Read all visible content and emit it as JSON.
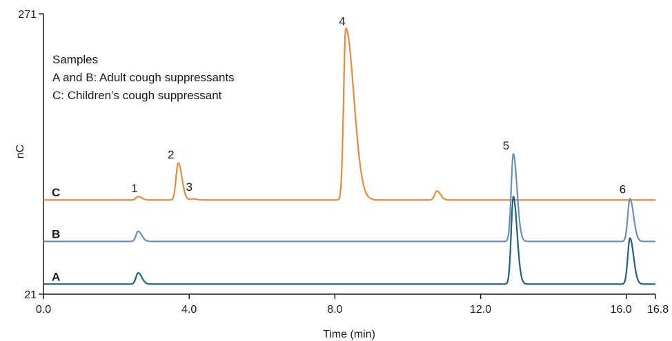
{
  "chart_data": {
    "type": "line",
    "xlabel": "Time (min)",
    "ylabel": "nC",
    "xlim": [
      0,
      16.8
    ],
    "ylim": [
      21,
      271
    ],
    "x_ticks": [
      "0.0",
      "4.0",
      "8.0",
      "12.0",
      "16.0",
      "16.8"
    ],
    "x_tick_values": [
      0,
      4,
      8,
      12,
      16,
      16.8
    ],
    "y_ticks": [
      "21",
      "271"
    ],
    "y_tick_values": [
      21,
      271
    ],
    "notes": [
      "Samples",
      "A and B: Adult cough suppressants",
      "C: Children’s cough suppressant"
    ],
    "series": [
      {
        "name": "C",
        "color": "#e98a3d",
        "baseline": 105,
        "peaks": [
          {
            "label": "1",
            "x": 2.6,
            "y": 108
          },
          {
            "label": "2",
            "x": 3.7,
            "y": 138
          },
          {
            "label": "3",
            "x": 4.1,
            "y": 106
          },
          {
            "label": "4",
            "x": 8.3,
            "y": 258
          },
          {
            "label": "",
            "x": 10.8,
            "y": 113
          },
          {
            "label": "6",
            "x": 16.1,
            "y": 105
          }
        ]
      },
      {
        "name": "B",
        "color": "#6a8fb6",
        "baseline": 68,
        "peaks": [
          {
            "label": "",
            "x": 2.6,
            "y": 77
          },
          {
            "label": "5",
            "x": 12.9,
            "y": 146
          },
          {
            "label": "",
            "x": 16.1,
            "y": 106
          }
        ]
      },
      {
        "name": "A",
        "color": "#1d6478",
        "baseline": 30,
        "peaks": [
          {
            "label": "",
            "x": 2.6,
            "y": 40
          },
          {
            "label": "",
            "x": 12.9,
            "y": 108
          },
          {
            "label": "",
            "x": 16.1,
            "y": 71
          }
        ]
      }
    ],
    "peak_labels": [
      {
        "text": "1",
        "x": 2.5,
        "y": 112
      },
      {
        "text": "2",
        "x": 3.5,
        "y": 142
      },
      {
        "text": "3",
        "x": 4.0,
        "y": 113
      },
      {
        "text": "4",
        "x": 8.2,
        "y": 261
      },
      {
        "text": "5",
        "x": 12.7,
        "y": 150
      },
      {
        "text": "6",
        "x": 15.9,
        "y": 111
      }
    ]
  }
}
